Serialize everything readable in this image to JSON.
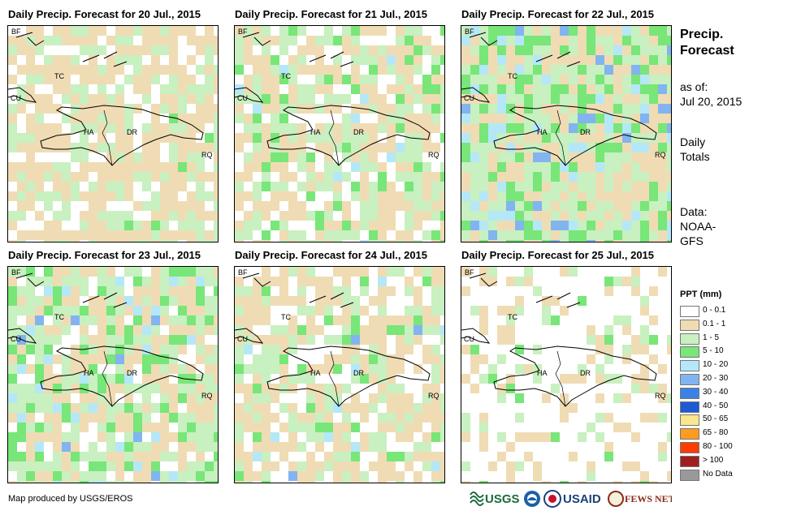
{
  "panels": [
    {
      "title": "Daily Precip. Forecast for 20 Jul., 2015"
    },
    {
      "title": "Daily Precip. Forecast for 21 Jul., 2015"
    },
    {
      "title": "Daily Precip. Forecast for 22 Jul., 2015"
    },
    {
      "title": "Daily Precip. Forecast for 23 Jul., 2015"
    },
    {
      "title": "Daily Precip. Forecast for 24 Jul., 2015"
    },
    {
      "title": "Daily Precip. Forecast for 25 Jul., 2015"
    }
  ],
  "map_labels": {
    "bf": "BF",
    "cu": "CU",
    "ha": "HA",
    "dr": "DR",
    "rq": "RQ",
    "tc": "TC"
  },
  "side": {
    "title_line1": "Precip.",
    "title_line2": "Forecast",
    "asof_line1": "as of:",
    "asof_line2": "Jul 20, 2015",
    "totals_line1": "Daily",
    "totals_line2": "Totals",
    "data_line1": "Data:",
    "data_line2": "NOAA-",
    "data_line3": "GFS"
  },
  "legend": {
    "title": "PPT (mm)",
    "items": [
      {
        "label": "0 - 0.1",
        "color": "#ffffff"
      },
      {
        "label": "0.1 - 1",
        "color": "#f0dcb4"
      },
      {
        "label": "1 - 5",
        "color": "#c8f0c0"
      },
      {
        "label": "5 - 10",
        "color": "#78e678"
      },
      {
        "label": "10 - 20",
        "color": "#b4e8f8"
      },
      {
        "label": "20 - 30",
        "color": "#82b4f0"
      },
      {
        "label": "30 - 40",
        "color": "#3c82e6"
      },
      {
        "label": "40 - 50",
        "color": "#1e5ad2"
      },
      {
        "label": "50 - 65",
        "color": "#fae68c"
      },
      {
        "label": "65 - 80",
        "color": "#ff9b1e"
      },
      {
        "label": "80 - 100",
        "color": "#ff3c00"
      },
      {
        "label": "> 100",
        "color": "#a01e1e"
      },
      {
        "label": "No Data",
        "color": "#999999"
      }
    ]
  },
  "credit": "Map produced by USGS/EROS",
  "logos": {
    "usgs": "USGS",
    "usaid": "USAID",
    "fewsnet": "FEWS NET"
  }
}
